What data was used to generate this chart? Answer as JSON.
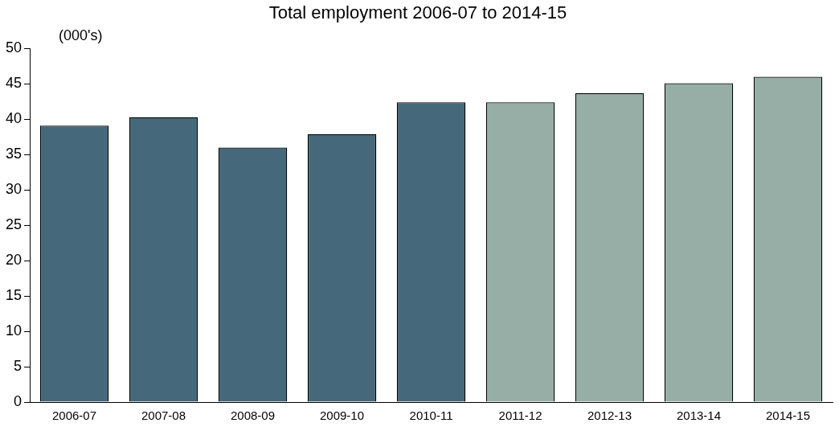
{
  "chart_data": {
    "type": "bar",
    "title": "Total employment 2006-07 to 2014-15",
    "ylabel": "(000's)",
    "categories": [
      "2006-07",
      "2007-08",
      "2008-09",
      "2009-10",
      "2010-11",
      "2011-12",
      "2012-13",
      "2013-14",
      "2014-15"
    ],
    "values": [
      39.1,
      40.3,
      36.0,
      37.9,
      42.4,
      42.4,
      43.7,
      45.1,
      46.0
    ],
    "colors": [
      "#46687b",
      "#46687b",
      "#46687b",
      "#46687b",
      "#46687b",
      "#97aea6",
      "#97aea6",
      "#97aea6",
      "#97aea6"
    ],
    "ylim": [
      0,
      50
    ],
    "yticks": [
      0,
      5,
      10,
      15,
      20,
      25,
      30,
      35,
      40,
      45,
      50
    ],
    "grid": false,
    "legend": false
  }
}
